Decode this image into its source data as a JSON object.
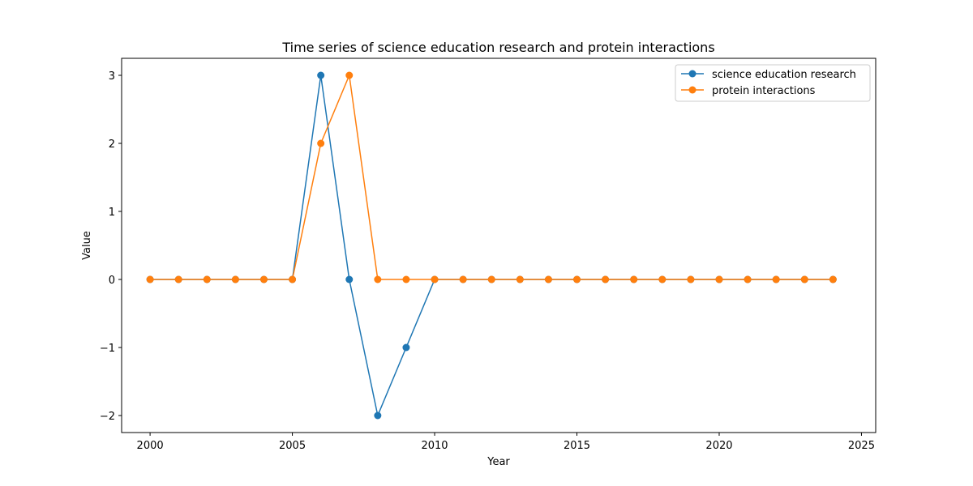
{
  "chart_data": {
    "type": "line",
    "title": "Time series of science education research and protein interactions",
    "xlabel": "Year",
    "ylabel": "Value",
    "xlim": [
      1999,
      2025.5
    ],
    "ylim": [
      -2.25,
      3.25
    ],
    "xticks": [
      2000,
      2005,
      2010,
      2015,
      2020,
      2025
    ],
    "xtick_labels": [
      "2000",
      "2005",
      "2010",
      "2015",
      "2020",
      "2025"
    ],
    "yticks": [
      -2,
      -1,
      0,
      1,
      2,
      3
    ],
    "ytick_labels": [
      "−2",
      "−1",
      "0",
      "1",
      "2",
      "3"
    ],
    "grid": false,
    "legend_position": "upper right",
    "x": [
      2000,
      2001,
      2002,
      2003,
      2004,
      2005,
      2006,
      2007,
      2008,
      2009,
      2010,
      2011,
      2012,
      2013,
      2014,
      2015,
      2016,
      2017,
      2018,
      2019,
      2020,
      2021,
      2022,
      2023,
      2024
    ],
    "series": [
      {
        "name": "science education research",
        "color": "#1f77b4",
        "values": [
          0,
          0,
          0,
          0,
          0,
          0,
          3,
          0,
          -2,
          -1,
          0,
          0,
          0,
          0,
          0,
          0,
          0,
          0,
          0,
          0,
          0,
          0,
          0,
          0,
          0
        ]
      },
      {
        "name": "protein interactions",
        "color": "#ff7f0e",
        "values": [
          0,
          0,
          0,
          0,
          0,
          0,
          2,
          3,
          0,
          0,
          0,
          0,
          0,
          0,
          0,
          0,
          0,
          0,
          0,
          0,
          0,
          0,
          0,
          0,
          0
        ]
      }
    ]
  }
}
